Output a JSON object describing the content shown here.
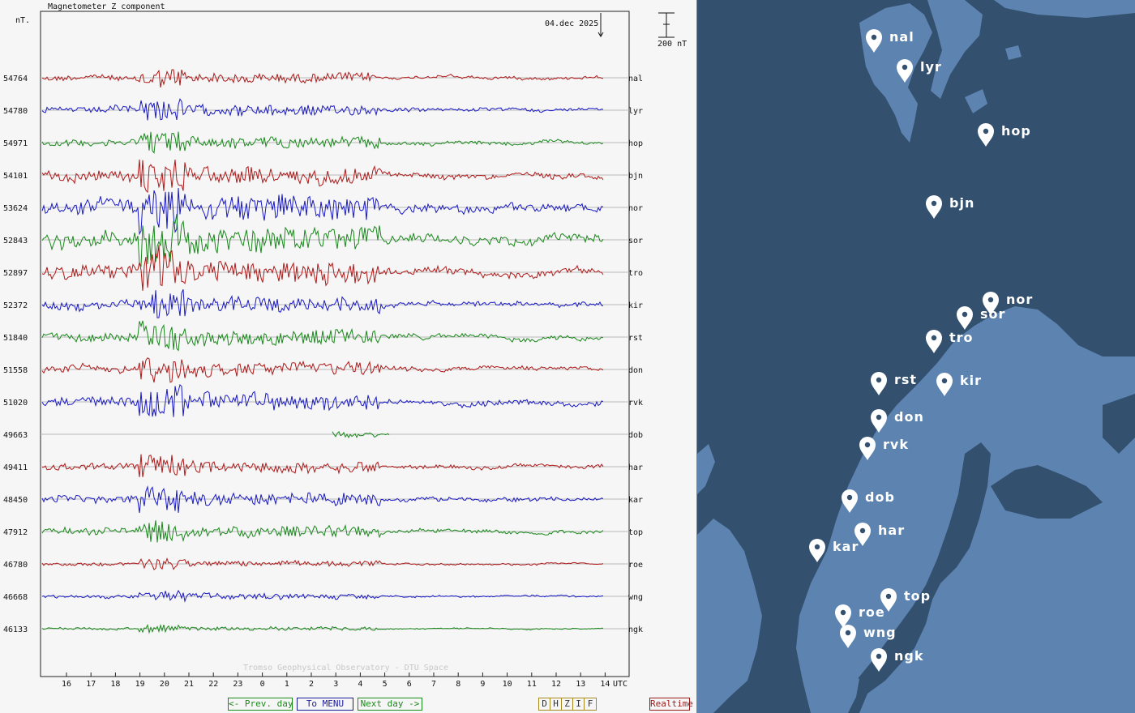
{
  "plot": {
    "title": "Magnetometer Z component",
    "unit": "nT.",
    "date": "04.dec 2025",
    "scale_label": "200 nT",
    "watermark": "Tromso Geophysical Observatory - DTU Space",
    "utc_label": "UTC",
    "hours": [
      "16",
      "17",
      "18",
      "19",
      "20",
      "21",
      "22",
      "23",
      "0",
      "1",
      "2",
      "3",
      "4",
      "5",
      "6",
      "7",
      "8",
      "9",
      "10",
      "11",
      "12",
      "13",
      "14"
    ],
    "stations": [
      {
        "code": "nal",
        "baseline": "54764",
        "color": "#b01818"
      },
      {
        "code": "lyr",
        "baseline": "54780",
        "color": "#1818c8"
      },
      {
        "code": "hop",
        "baseline": "54971",
        "color": "#18881a"
      },
      {
        "code": "bjn",
        "baseline": "54101",
        "color": "#b01818"
      },
      {
        "code": "nor",
        "baseline": "53624",
        "color": "#1818c8"
      },
      {
        "code": "sor",
        "baseline": "52843",
        "color": "#18881a"
      },
      {
        "code": "tro",
        "baseline": "52897",
        "color": "#b01818"
      },
      {
        "code": "kir",
        "baseline": "52372",
        "color": "#1818c8"
      },
      {
        "code": "rst",
        "baseline": "51840",
        "color": "#18881a"
      },
      {
        "code": "don",
        "baseline": "51558",
        "color": "#b01818"
      },
      {
        "code": "rvk",
        "baseline": "51020",
        "color": "#1818c8"
      },
      {
        "code": "dob",
        "baseline": "49663",
        "color": "#18881a"
      },
      {
        "code": "har",
        "baseline": "49411",
        "color": "#b01818"
      },
      {
        "code": "kar",
        "baseline": "48450",
        "color": "#1818c8"
      },
      {
        "code": "top",
        "baseline": "47912",
        "color": "#18881a"
      },
      {
        "code": "roe",
        "baseline": "46780",
        "color": "#b01818"
      },
      {
        "code": "wng",
        "baseline": "46668",
        "color": "#1818c8"
      },
      {
        "code": "ngk",
        "baseline": "46133",
        "color": "#18881a"
      }
    ]
  },
  "nav": {
    "prev": "<- Prev. day",
    "menu": "To MENU",
    "next": "Next day ->",
    "components": [
      "D",
      "H",
      "Z",
      "I",
      "F"
    ],
    "realtime": "Realtime"
  },
  "map": {
    "markers": [
      "nal",
      "lyr",
      "hop",
      "bjn",
      "nor",
      "sor",
      "tro",
      "rst",
      "kir",
      "don",
      "rvk",
      "dob",
      "har",
      "kar",
      "top",
      "roe",
      "wng",
      "ngk"
    ]
  },
  "colors": {
    "red": "#b01818",
    "blue": "#1818c8",
    "green": "#18881a",
    "sea": "#33506f",
    "land": "#5d84b0"
  }
}
